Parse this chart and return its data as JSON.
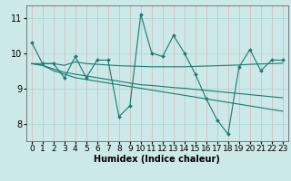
{
  "title": "",
  "xlabel": "Humidex (Indice chaleur)",
  "xlim": [
    -0.5,
    23.5
  ],
  "ylim": [
    7.5,
    11.35
  ],
  "yticks": [
    8,
    9,
    10,
    11
  ],
  "xticks": [
    0,
    1,
    2,
    3,
    4,
    5,
    6,
    7,
    8,
    9,
    10,
    11,
    12,
    13,
    14,
    15,
    16,
    17,
    18,
    19,
    20,
    21,
    22,
    23
  ],
  "bg_color": "#cce8e8",
  "grid_color_h": "#a8d4d4",
  "grid_color_v": "#d4b8b8",
  "line_color": "#1a7a6e",
  "series": [
    [
      10.3,
      9.7,
      9.7,
      9.3,
      9.9,
      9.3,
      9.8,
      9.8,
      8.2,
      8.5,
      11.1,
      10.0,
      9.9,
      10.5,
      10.0,
      9.4,
      8.7,
      8.1,
      7.7,
      9.6,
      10.1,
      9.5,
      9.8,
      9.8
    ],
    [
      9.7,
      9.7,
      9.7,
      9.65,
      9.75,
      9.7,
      9.68,
      9.66,
      9.64,
      9.63,
      9.62,
      9.61,
      9.61,
      9.61,
      9.61,
      9.62,
      9.63,
      9.64,
      9.65,
      9.66,
      9.68,
      9.69,
      9.7,
      9.71
    ],
    [
      9.7,
      9.65,
      9.5,
      9.4,
      9.3,
      9.25,
      9.2,
      9.15,
      9.1,
      9.05,
      9.0,
      8.95,
      8.9,
      8.85,
      8.8,
      8.75,
      8.7,
      8.65,
      8.6,
      8.55,
      8.5,
      8.45,
      8.4,
      8.35
    ],
    [
      9.7,
      9.65,
      9.55,
      9.45,
      9.4,
      9.35,
      9.3,
      9.25,
      9.2,
      9.15,
      9.1,
      9.08,
      9.05,
      9.02,
      9.0,
      8.97,
      8.94,
      8.91,
      8.88,
      8.85,
      8.82,
      8.79,
      8.76,
      8.73
    ]
  ],
  "fontsize_xlabel": 7,
  "fontsize_ticks": 6.5
}
